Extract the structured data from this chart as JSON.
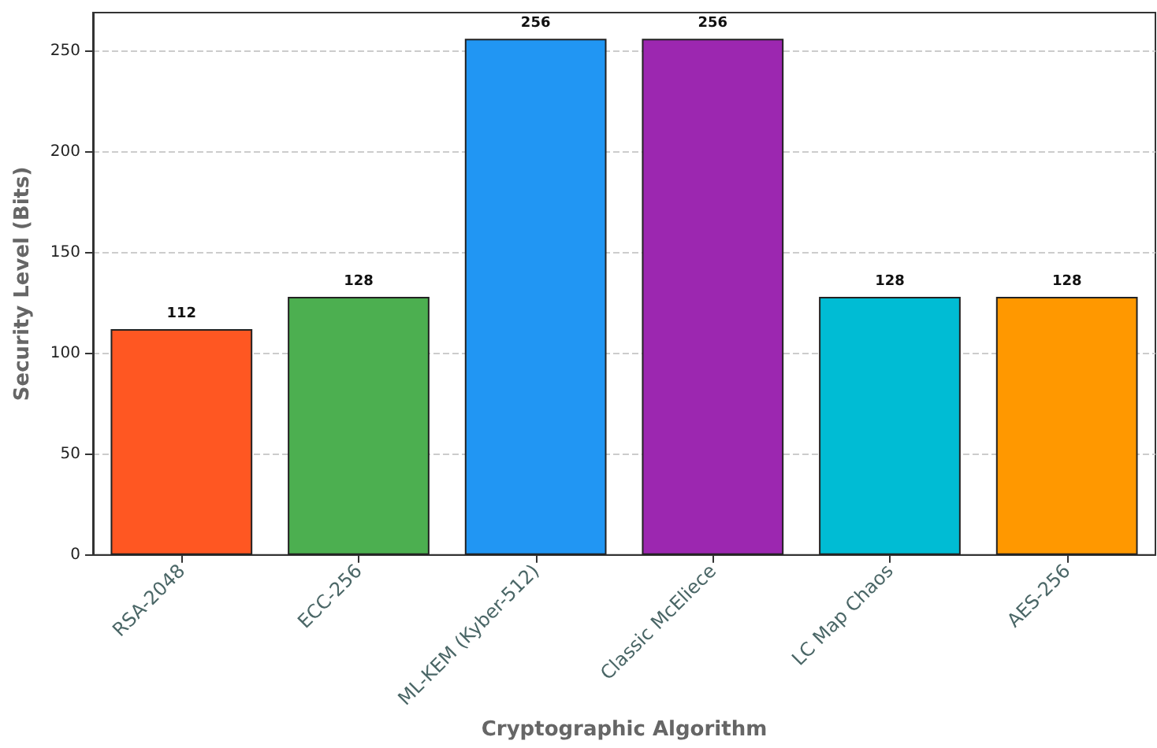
{
  "chart_data": {
    "type": "bar",
    "xlabel": "Cryptographic Algorithm",
    "ylabel": "Security Level (Bits)",
    "categories": [
      "RSA-2048",
      "ECC-256",
      "ML-KEM (Kyber-512)",
      "Classic McEliece",
      "LC Map Chaos",
      "AES-256"
    ],
    "values": [
      112,
      128,
      256,
      256,
      128,
      128
    ],
    "colors": [
      "#ff5722",
      "#4caf50",
      "#2196f3",
      "#9c27b0",
      "#00bcd4",
      "#ff9800"
    ],
    "ylim": [
      0,
      269
    ],
    "yticks": [
      0,
      50,
      100,
      150,
      200,
      250
    ],
    "grid": "y",
    "data_labels": true
  }
}
